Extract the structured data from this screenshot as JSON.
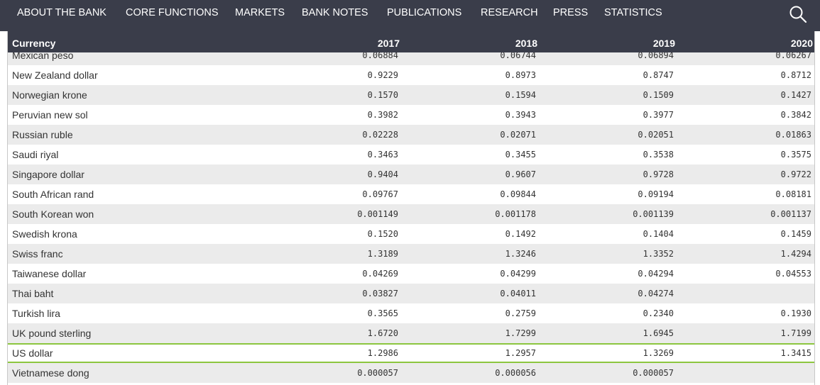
{
  "nav": {
    "items": [
      "ABOUT THE BANK",
      "CORE FUNCTIONS",
      "MARKETS",
      "BANK NOTES",
      "PUBLICATIONS",
      "RESEARCH",
      "PRESS",
      "STATISTICS"
    ],
    "search_icon": "search-icon"
  },
  "table": {
    "columns": [
      "Currency",
      "2017",
      "2018",
      "2019",
      "2020"
    ],
    "rows": [
      {
        "currency": "Mexican peso",
        "values": [
          "0.06884",
          "0.06744",
          "0.06894",
          "0.06267"
        ]
      },
      {
        "currency": "New Zealand dollar",
        "values": [
          "0.9229",
          "0.8973",
          "0.8747",
          "0.8712"
        ]
      },
      {
        "currency": "Norwegian krone",
        "values": [
          "0.1570",
          "0.1594",
          "0.1509",
          "0.1427"
        ]
      },
      {
        "currency": "Peruvian new sol",
        "values": [
          "0.3982",
          "0.3943",
          "0.3977",
          "0.3842"
        ]
      },
      {
        "currency": "Russian ruble",
        "values": [
          "0.02228",
          "0.02071",
          "0.02051",
          "0.01863"
        ]
      },
      {
        "currency": "Saudi riyal",
        "values": [
          "0.3463",
          "0.3455",
          "0.3538",
          "0.3575"
        ]
      },
      {
        "currency": "Singapore dollar",
        "values": [
          "0.9404",
          "0.9607",
          "0.9728",
          "0.9722"
        ]
      },
      {
        "currency": "South African rand",
        "values": [
          "0.09767",
          "0.09844",
          "0.09194",
          "0.08181"
        ]
      },
      {
        "currency": "South Korean won",
        "values": [
          "0.001149",
          "0.001178",
          "0.001139",
          "0.001137"
        ]
      },
      {
        "currency": "Swedish krona",
        "values": [
          "0.1520",
          "0.1492",
          "0.1404",
          "0.1459"
        ]
      },
      {
        "currency": "Swiss franc",
        "values": [
          "1.3189",
          "1.3246",
          "1.3352",
          "1.4294"
        ]
      },
      {
        "currency": "Taiwanese dollar",
        "values": [
          "0.04269",
          "0.04299",
          "0.04294",
          "0.04553"
        ]
      },
      {
        "currency": "Thai baht",
        "values": [
          "0.03827",
          "0.04011",
          "0.04274",
          ""
        ]
      },
      {
        "currency": "Turkish lira",
        "values": [
          "0.3565",
          "0.2759",
          "0.2340",
          "0.1930"
        ]
      },
      {
        "currency": "UK pound sterling",
        "values": [
          "1.6720",
          "1.7299",
          "1.6945",
          "1.7199"
        ]
      },
      {
        "currency": "US dollar",
        "values": [
          "1.2986",
          "1.2957",
          "1.3269",
          "1.3415"
        ],
        "highlighted": true
      },
      {
        "currency": "Vietnamese dong",
        "values": [
          "0.000057",
          "0.000056",
          "0.000057",
          ""
        ]
      }
    ]
  },
  "colors": {
    "nav_bg": "#3a3d4a",
    "row_alt": "#ebebeb",
    "highlight_border": "#8cc63f"
  }
}
